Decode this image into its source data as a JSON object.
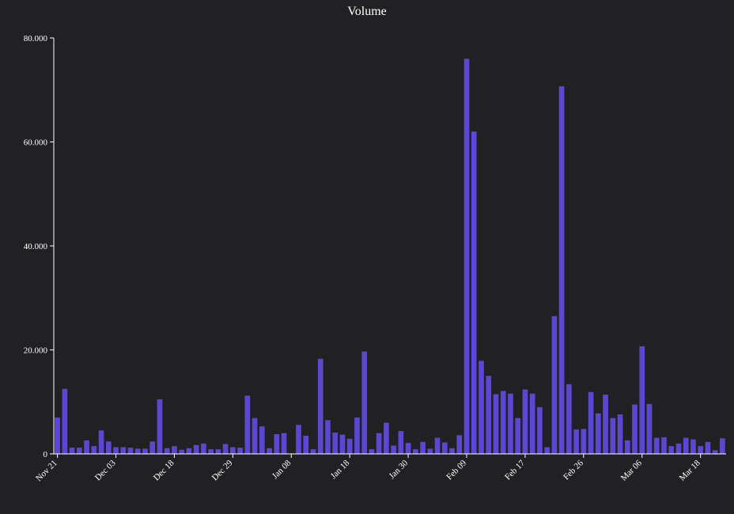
{
  "chart_data": {
    "type": "bar",
    "title": "Volume",
    "xlabel": "",
    "ylabel": "",
    "ylim": [
      0,
      80000
    ],
    "y_ticks": [
      0,
      20000,
      40000,
      60000,
      80000
    ],
    "y_tick_labels": [
      "0",
      "20.000",
      "40.000",
      "60.000",
      "80.000"
    ],
    "x_tick_labels": [
      "Nov 21",
      "Dec 03",
      "Dec 18",
      "Dec 29",
      "Jan 08",
      "Jan 18",
      "Jan 30",
      "Feb 09",
      "Feb 17",
      "Feb 26",
      "Mar 06",
      "Mar 18"
    ],
    "x_tick_indices": [
      0,
      8,
      16,
      24,
      32,
      40,
      48,
      56,
      64,
      72,
      80,
      88
    ],
    "bar_color": "#5b47d1",
    "background": "#212124",
    "values": [
      7000,
      12500,
      1200,
      1200,
      2600,
      1500,
      4500,
      2400,
      1300,
      1300,
      1200,
      1000,
      1000,
      2400,
      10500,
      1100,
      1500,
      800,
      1100,
      1700,
      2000,
      900,
      900,
      1900,
      1300,
      1200,
      11200,
      6900,
      5300,
      1100,
      3800,
      4000,
      0,
      5600,
      3500,
      900,
      18300,
      6500,
      4100,
      3700,
      2900,
      7000,
      19700,
      900,
      4000,
      6000,
      1600,
      4400,
      2100,
      900,
      2300,
      1000,
      3100,
      2200,
      1100,
      3600,
      76000,
      62000,
      17900,
      15000,
      11500,
      12100,
      11600,
      6900,
      12400,
      11600,
      9000,
      1300,
      26500,
      70700,
      13400,
      4700,
      4800,
      11900,
      7800,
      11400,
      6900,
      7600,
      2600,
      9500,
      20700,
      9600,
      3100,
      3200,
      1500,
      2000,
      3100,
      2800,
      1500,
      2300,
      700,
      3000
    ]
  }
}
